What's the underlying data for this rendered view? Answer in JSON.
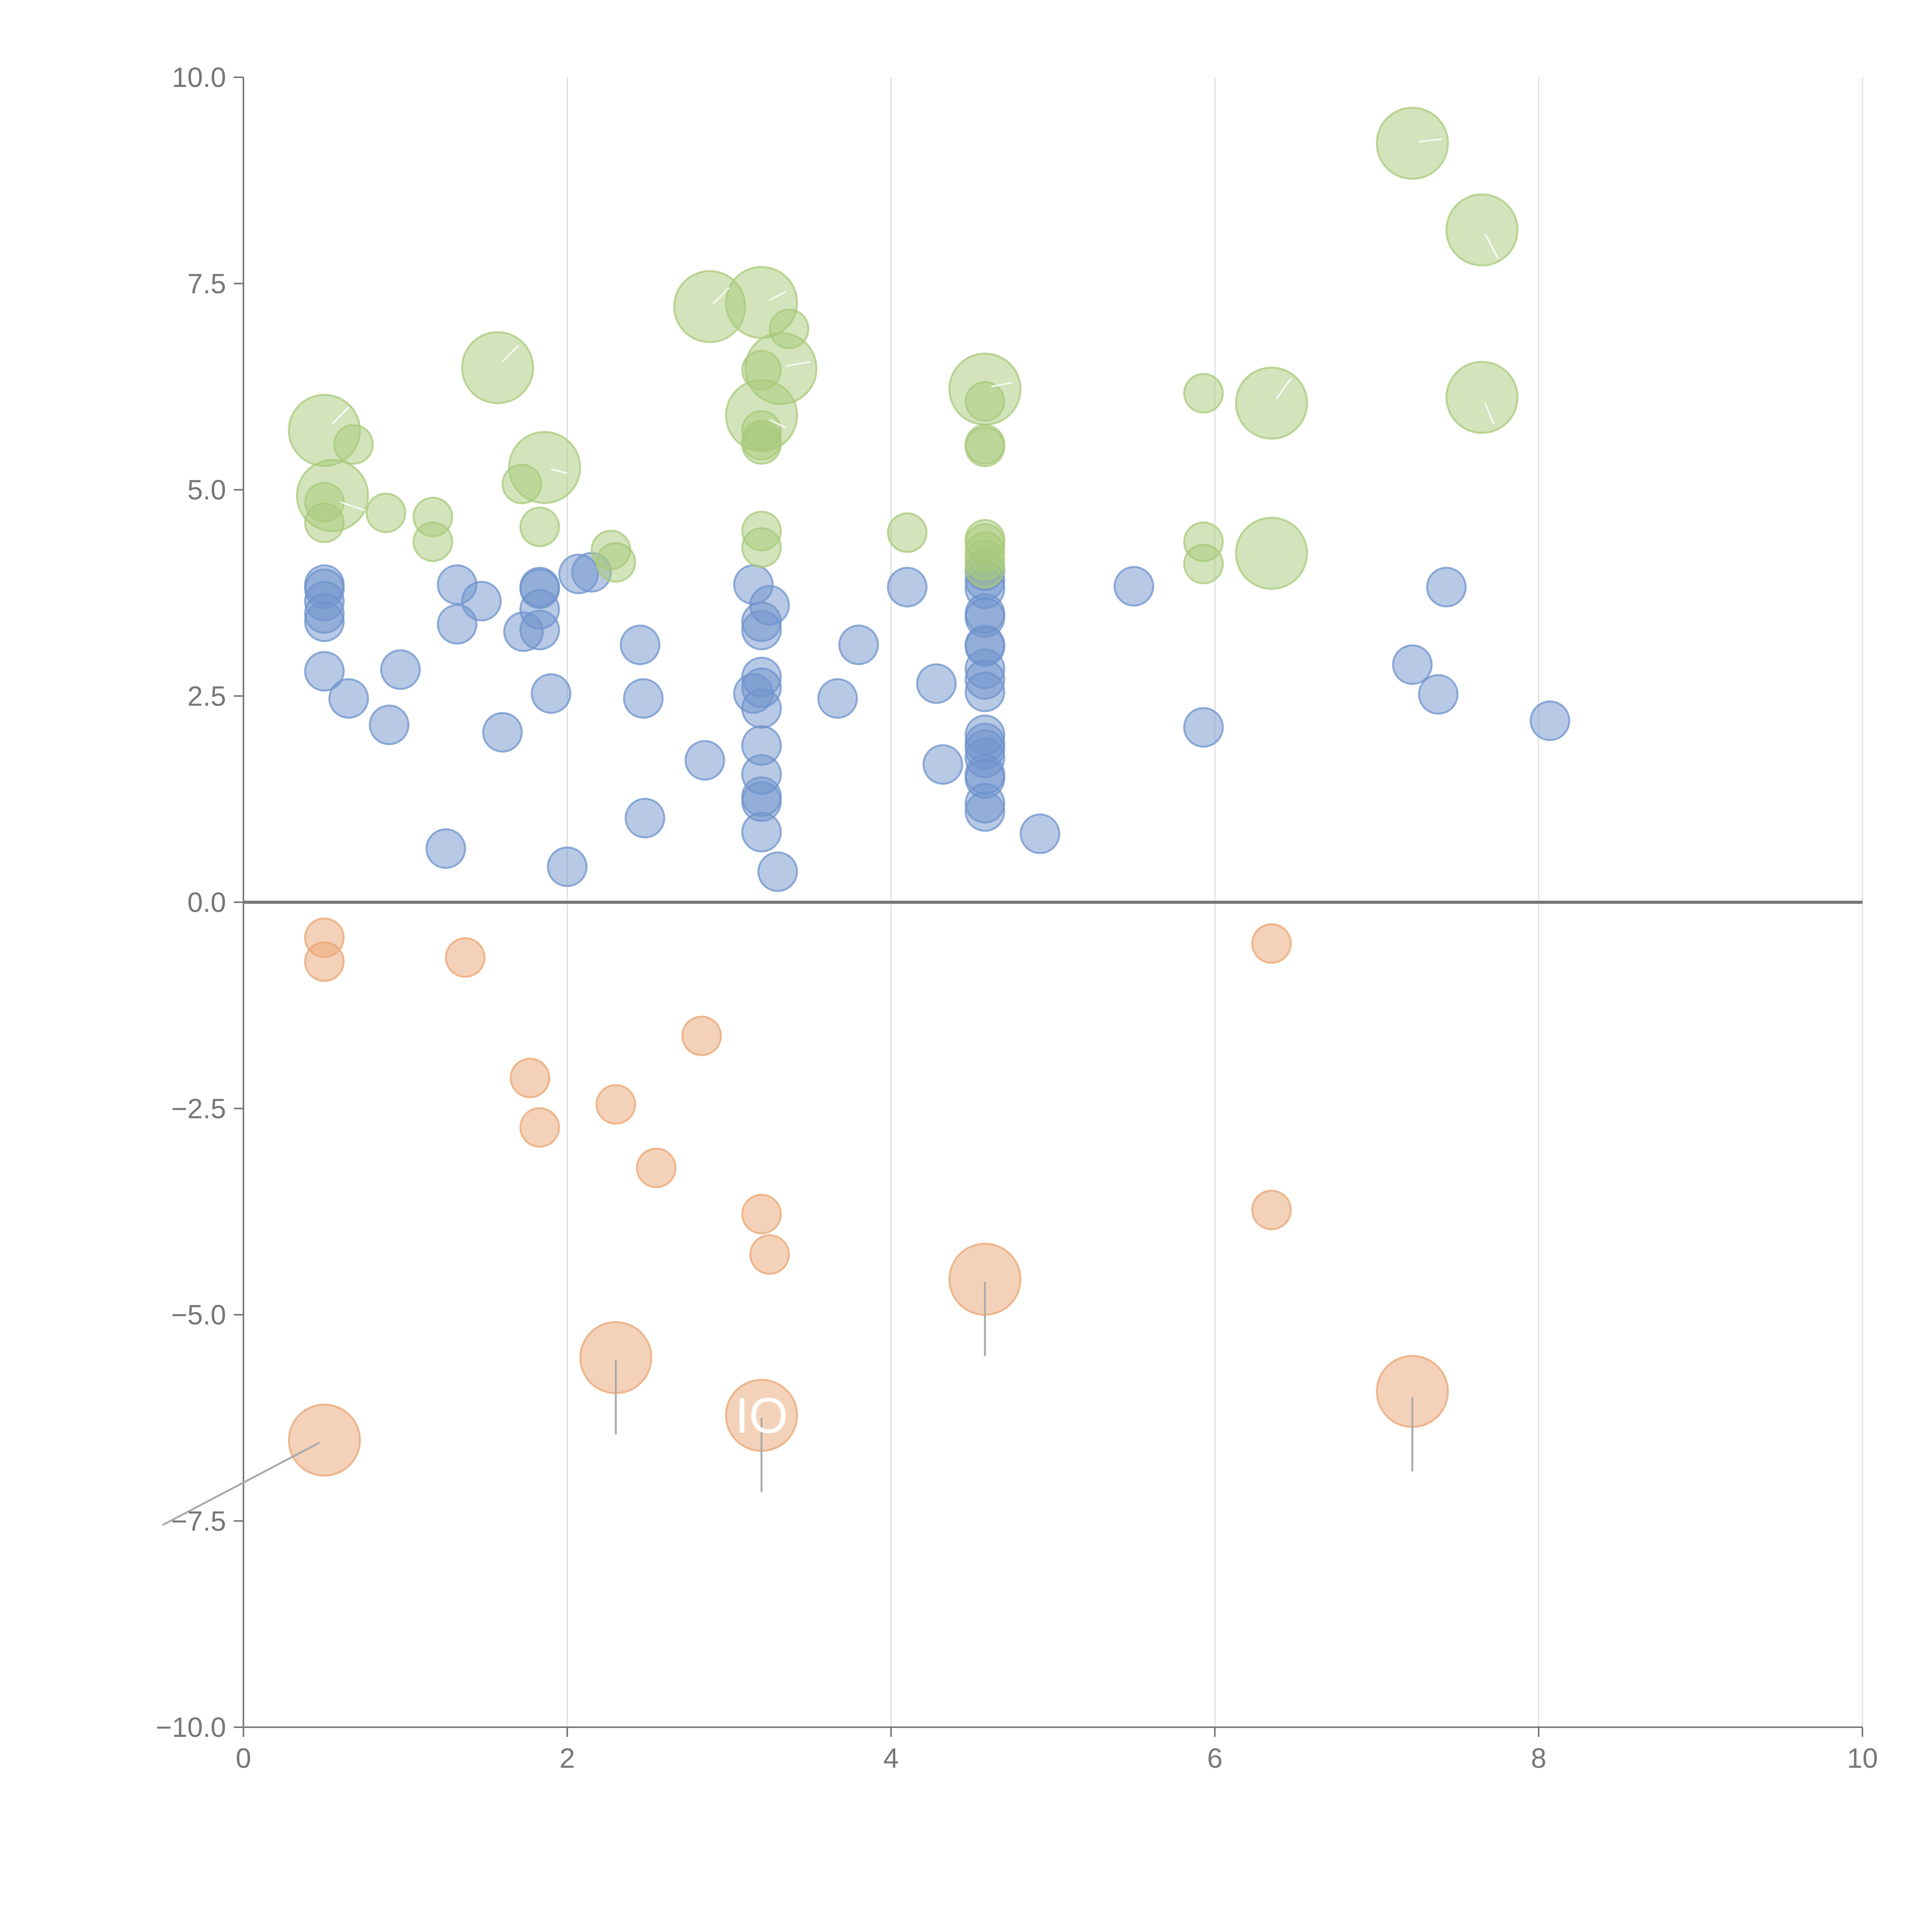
{
  "chart_data": {
    "type": "scatter",
    "title": "",
    "xlabel": "",
    "ylabel": "",
    "xlim": [
      0,
      10
    ],
    "ylim": [
      -10,
      10
    ],
    "x_ticks": [
      "0",
      "2",
      "4",
      "6",
      "8",
      "10"
    ],
    "y_ticks": [
      "10.0",
      "7.5",
      "5.0",
      "2.5",
      "0.0",
      "−2.5",
      "−5.0",
      "−7.5",
      "−10.0"
    ],
    "x_tick_values": [
      0,
      2,
      4,
      6,
      8,
      10
    ],
    "y_tick_values": [
      10,
      7.5,
      5,
      2.5,
      0,
      -2.5,
      -5,
      -7.5,
      -10
    ],
    "grid": "vertical",
    "series": [
      {
        "name": "blue",
        "color": "#6f93cc",
        "points": [
          {
            "x": 0.5,
            "y": 3.85,
            "s": 1
          },
          {
            "x": 0.5,
            "y": 3.8,
            "s": 1
          },
          {
            "x": 0.5,
            "y": 3.65,
            "s": 1
          },
          {
            "x": 0.5,
            "y": 3.5,
            "s": 1
          },
          {
            "x": 0.5,
            "y": 3.4,
            "s": 1
          },
          {
            "x": 0.5,
            "y": 2.8,
            "s": 1
          },
          {
            "x": 0.65,
            "y": 2.47,
            "s": 1
          },
          {
            "x": 0.9,
            "y": 2.15,
            "s": 1
          },
          {
            "x": 0.97,
            "y": 2.82,
            "s": 1
          },
          {
            "x": 1.25,
            "y": 0.65,
            "s": 1
          },
          {
            "x": 1.32,
            "y": 3.85,
            "s": 1
          },
          {
            "x": 1.32,
            "y": 3.37,
            "s": 1
          },
          {
            "x": 1.47,
            "y": 3.65,
            "s": 1
          },
          {
            "x": 1.6,
            "y": 2.06,
            "s": 1
          },
          {
            "x": 1.73,
            "y": 3.28,
            "s": 1
          },
          {
            "x": 1.83,
            "y": 3.82,
            "s": 1
          },
          {
            "x": 1.83,
            "y": 3.8,
            "s": 1
          },
          {
            "x": 1.83,
            "y": 3.55,
            "s": 1
          },
          {
            "x": 1.83,
            "y": 3.3,
            "s": 1
          },
          {
            "x": 1.9,
            "y": 2.53,
            "s": 1
          },
          {
            "x": 2.0,
            "y": 0.43,
            "s": 1
          },
          {
            "x": 2.07,
            "y": 3.98,
            "s": 1
          },
          {
            "x": 2.15,
            "y": 4.0,
            "s": 1
          },
          {
            "x": 2.45,
            "y": 3.12,
            "s": 1
          },
          {
            "x": 2.47,
            "y": 2.47,
            "s": 1
          },
          {
            "x": 2.48,
            "y": 1.02,
            "s": 1
          },
          {
            "x": 2.85,
            "y": 1.72,
            "s": 1
          },
          {
            "x": 3.15,
            "y": 3.85,
            "s": 1
          },
          {
            "x": 3.15,
            "y": 2.53,
            "s": 1
          },
          {
            "x": 3.2,
            "y": 3.4,
            "s": 1
          },
          {
            "x": 3.2,
            "y": 3.3,
            "s": 1
          },
          {
            "x": 3.2,
            "y": 2.73,
            "s": 1
          },
          {
            "x": 3.2,
            "y": 2.6,
            "s": 1
          },
          {
            "x": 3.2,
            "y": 2.35,
            "s": 1
          },
          {
            "x": 3.2,
            "y": 1.9,
            "s": 1
          },
          {
            "x": 3.2,
            "y": 1.55,
            "s": 1
          },
          {
            "x": 3.2,
            "y": 1.28,
            "s": 1
          },
          {
            "x": 3.2,
            "y": 1.22,
            "s": 1
          },
          {
            "x": 3.2,
            "y": 0.85,
            "s": 1
          },
          {
            "x": 3.25,
            "y": 3.6,
            "s": 1
          },
          {
            "x": 3.3,
            "y": 0.37,
            "s": 1
          },
          {
            "x": 3.67,
            "y": 2.47,
            "s": 1
          },
          {
            "x": 3.8,
            "y": 3.12,
            "s": 1
          },
          {
            "x": 4.1,
            "y": 3.82,
            "s": 1
          },
          {
            "x": 4.28,
            "y": 2.65,
            "s": 1
          },
          {
            "x": 4.32,
            "y": 1.67,
            "s": 1
          },
          {
            "x": 4.58,
            "y": 4.02,
            "s": 1
          },
          {
            "x": 4.58,
            "y": 3.9,
            "s": 1
          },
          {
            "x": 4.58,
            "y": 3.8,
            "s": 1
          },
          {
            "x": 4.58,
            "y": 3.5,
            "s": 1
          },
          {
            "x": 4.58,
            "y": 3.45,
            "s": 1
          },
          {
            "x": 4.58,
            "y": 3.12,
            "s": 1
          },
          {
            "x": 4.58,
            "y": 3.1,
            "s": 1
          },
          {
            "x": 4.58,
            "y": 2.83,
            "s": 1
          },
          {
            "x": 4.58,
            "y": 2.7,
            "s": 1
          },
          {
            "x": 4.58,
            "y": 2.55,
            "s": 1
          },
          {
            "x": 4.58,
            "y": 2.03,
            "s": 1
          },
          {
            "x": 4.58,
            "y": 1.93,
            "s": 1
          },
          {
            "x": 4.58,
            "y": 1.85,
            "s": 1
          },
          {
            "x": 4.58,
            "y": 1.75,
            "s": 1
          },
          {
            "x": 4.58,
            "y": 1.55,
            "s": 1
          },
          {
            "x": 4.58,
            "y": 1.5,
            "s": 1
          },
          {
            "x": 4.58,
            "y": 1.2,
            "s": 1
          },
          {
            "x": 4.58,
            "y": 1.1,
            "s": 1
          },
          {
            "x": 4.92,
            "y": 0.83,
            "s": 1
          },
          {
            "x": 5.5,
            "y": 3.83,
            "s": 1
          },
          {
            "x": 5.93,
            "y": 2.12,
            "s": 1
          },
          {
            "x": 7.22,
            "y": 2.88,
            "s": 1
          },
          {
            "x": 7.38,
            "y": 2.52,
            "s": 1
          },
          {
            "x": 7.43,
            "y": 3.82,
            "s": 1
          },
          {
            "x": 8.07,
            "y": 2.2,
            "s": 1
          }
        ]
      },
      {
        "name": "green",
        "color": "#a8c97a",
        "points": [
          {
            "x": 0.5,
            "y": 5.72,
            "s": 2
          },
          {
            "x": 0.55,
            "y": 4.93,
            "s": 2
          },
          {
            "x": 0.5,
            "y": 4.85,
            "s": 1
          },
          {
            "x": 0.5,
            "y": 4.6,
            "s": 1
          },
          {
            "x": 0.68,
            "y": 5.55,
            "s": 1
          },
          {
            "x": 0.88,
            "y": 4.72,
            "s": 1
          },
          {
            "x": 1.17,
            "y": 4.67,
            "s": 1
          },
          {
            "x": 1.17,
            "y": 4.37,
            "s": 1
          },
          {
            "x": 1.57,
            "y": 6.48,
            "s": 2
          },
          {
            "x": 1.72,
            "y": 5.07,
            "s": 1
          },
          {
            "x": 1.83,
            "y": 4.55,
            "s": 1
          },
          {
            "x": 1.86,
            "y": 5.27,
            "s": 2
          },
          {
            "x": 2.27,
            "y": 4.27,
            "s": 1
          },
          {
            "x": 2.3,
            "y": 4.12,
            "s": 1
          },
          {
            "x": 2.88,
            "y": 7.22,
            "s": 2
          },
          {
            "x": 3.2,
            "y": 7.27,
            "s": 2
          },
          {
            "x": 3.2,
            "y": 6.45,
            "s": 1
          },
          {
            "x": 3.2,
            "y": 5.9,
            "s": 2
          },
          {
            "x": 3.2,
            "y": 5.72,
            "s": 1
          },
          {
            "x": 3.2,
            "y": 5.6,
            "s": 1
          },
          {
            "x": 3.2,
            "y": 5.55,
            "s": 1
          },
          {
            "x": 3.2,
            "y": 4.5,
            "s": 1
          },
          {
            "x": 3.2,
            "y": 4.3,
            "s": 1
          },
          {
            "x": 3.32,
            "y": 6.47,
            "s": 2
          },
          {
            "x": 3.37,
            "y": 6.95,
            "s": 1
          },
          {
            "x": 4.1,
            "y": 4.48,
            "s": 1
          },
          {
            "x": 4.58,
            "y": 6.22,
            "s": 2
          },
          {
            "x": 4.58,
            "y": 6.07,
            "s": 1
          },
          {
            "x": 4.58,
            "y": 5.55,
            "s": 1
          },
          {
            "x": 4.58,
            "y": 5.52,
            "s": 1
          },
          {
            "x": 4.58,
            "y": 4.4,
            "s": 1
          },
          {
            "x": 4.58,
            "y": 4.35,
            "s": 1
          },
          {
            "x": 4.58,
            "y": 4.25,
            "s": 1
          },
          {
            "x": 4.58,
            "y": 4.15,
            "s": 1
          },
          {
            "x": 4.58,
            "y": 4.05,
            "s": 1
          },
          {
            "x": 5.93,
            "y": 6.17,
            "s": 1
          },
          {
            "x": 5.93,
            "y": 4.37,
            "s": 1
          },
          {
            "x": 5.93,
            "y": 4.1,
            "s": 1
          },
          {
            "x": 6.35,
            "y": 6.05,
            "s": 2
          },
          {
            "x": 6.35,
            "y": 4.23,
            "s": 2
          },
          {
            "x": 7.22,
            "y": 9.2,
            "s": 2
          },
          {
            "x": 7.65,
            "y": 8.15,
            "s": 2
          },
          {
            "x": 7.65,
            "y": 6.12,
            "s": 2
          }
        ]
      },
      {
        "name": "orange",
        "color": "#e9a673",
        "points": [
          {
            "x": 0.5,
            "y": -0.43,
            "s": 1
          },
          {
            "x": 0.5,
            "y": -0.72,
            "s": 1
          },
          {
            "x": 1.37,
            "y": -0.67,
            "s": 1
          },
          {
            "x": 1.77,
            "y": -2.13,
            "s": 1
          },
          {
            "x": 1.83,
            "y": -2.73,
            "s": 1
          },
          {
            "x": 2.3,
            "y": -2.45,
            "s": 1
          },
          {
            "x": 2.55,
            "y": -3.22,
            "s": 1
          },
          {
            "x": 2.83,
            "y": -1.62,
            "s": 1
          },
          {
            "x": 3.2,
            "y": -3.78,
            "s": 1
          },
          {
            "x": 3.25,
            "y": -4.27,
            "s": 1
          },
          {
            "x": 6.35,
            "y": -0.5,
            "s": 1
          },
          {
            "x": 6.35,
            "y": -3.73,
            "s": 1
          },
          {
            "x": 0.5,
            "y": -6.52,
            "s": 2
          },
          {
            "x": 2.3,
            "y": -5.52,
            "s": 2
          },
          {
            "x": 3.2,
            "y": -6.22,
            "s": 2
          },
          {
            "x": 4.58,
            "y": -4.57,
            "s": 2
          },
          {
            "x": 7.22,
            "y": -5.93,
            "s": 2
          }
        ]
      }
    ],
    "leaders": [
      {
        "color": "gray",
        "from": [
          0.47,
          -6.55
        ],
        "to": [
          -0.5,
          -7.55
        ]
      },
      {
        "color": "gray",
        "from": [
          2.3,
          -5.55
        ],
        "to": [
          2.3,
          -6.45
        ]
      },
      {
        "color": "gray",
        "from": [
          3.2,
          -6.25
        ],
        "to": [
          3.2,
          -7.15
        ]
      },
      {
        "color": "gray",
        "from": [
          4.58,
          -4.6
        ],
        "to": [
          4.58,
          -5.5
        ]
      },
      {
        "color": "gray",
        "from": [
          7.22,
          -6.0
        ],
        "to": [
          7.22,
          -6.9
        ]
      },
      {
        "color": "light",
        "from": [
          0.55,
          5.8
        ],
        "to": [
          0.65,
          6.0
        ]
      },
      {
        "color": "light",
        "from": [
          0.6,
          4.85
        ],
        "to": [
          0.75,
          4.75
        ]
      },
      {
        "color": "light",
        "from": [
          1.6,
          6.55
        ],
        "to": [
          1.7,
          6.75
        ]
      },
      {
        "color": "light",
        "from": [
          1.9,
          5.25
        ],
        "to": [
          2.0,
          5.2
        ]
      },
      {
        "color": "light",
        "from": [
          2.9,
          7.25
        ],
        "to": [
          3.0,
          7.45
        ]
      },
      {
        "color": "light",
        "from": [
          3.25,
          7.3
        ],
        "to": [
          3.35,
          7.4
        ]
      },
      {
        "color": "light",
        "from": [
          3.35,
          6.5
        ],
        "to": [
          3.5,
          6.55
        ]
      },
      {
        "color": "light",
        "from": [
          3.25,
          5.85
        ],
        "to": [
          3.35,
          5.75
        ]
      },
      {
        "color": "light",
        "from": [
          4.62,
          6.25
        ],
        "to": [
          4.75,
          6.3
        ]
      },
      {
        "color": "light",
        "from": [
          6.38,
          6.1
        ],
        "to": [
          6.47,
          6.35
        ]
      },
      {
        "color": "light",
        "from": [
          7.26,
          9.22
        ],
        "to": [
          7.4,
          9.25
        ]
      },
      {
        "color": "light",
        "from": [
          7.67,
          8.1
        ],
        "to": [
          7.75,
          7.8
        ]
      },
      {
        "color": "light",
        "from": [
          7.67,
          6.05
        ],
        "to": [
          7.72,
          5.8
        ]
      }
    ],
    "annotations": [
      {
        "text": "IO",
        "x": 3.2,
        "y": -6.22
      }
    ]
  }
}
